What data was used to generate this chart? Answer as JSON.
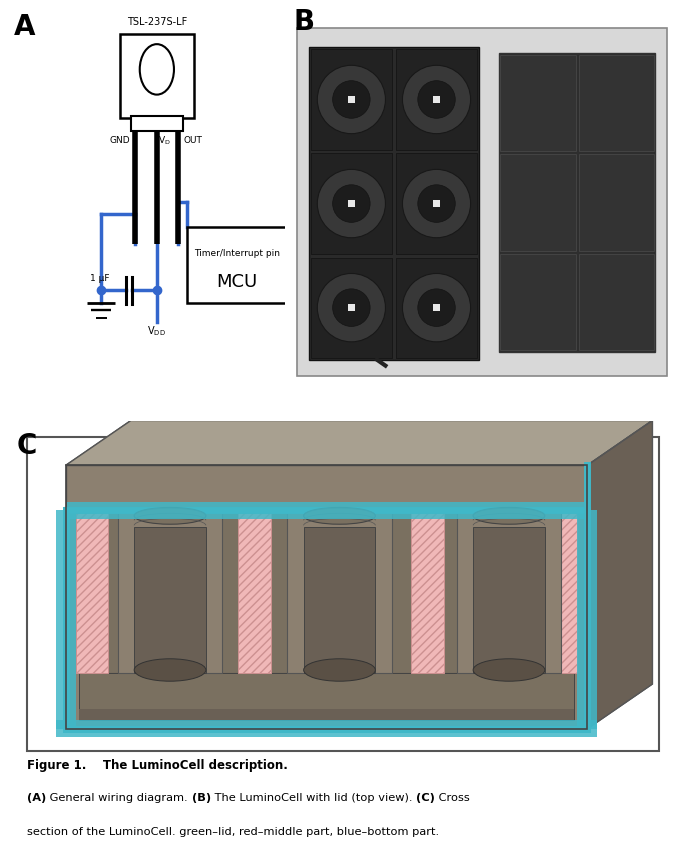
{
  "fig_width": 6.79,
  "fig_height": 8.41,
  "bg_color": "#ffffff",
  "panel_A_label": "A",
  "panel_B_label": "B",
  "panel_C_label": "C",
  "figure_caption_bold": "Figure 1.    The LuminoCell description.",
  "figure_caption_line2_bold_A": "(A)",
  "figure_caption_line2_normal1": " General wiring diagram. ",
  "figure_caption_line2_bold_B": "(B)",
  "figure_caption_line2_normal2": " The LuminoCell with lid (top view). ",
  "figure_caption_line2_bold_C": "(C)",
  "figure_caption_line2_normal3": " Cross",
  "figure_caption_line3": "section of the LuminoCell. green–lid, red–middle part, blue–bottom part.",
  "chip_label": "TSL-237S-LF",
  "gnd_label": "GND",
  "out_label": "OUT",
  "cap_label": "1 μF",
  "mcu_timer_label": "Timer/Interrupt pin",
  "mcu_label": "MCU",
  "black_color": "#000000",
  "blue_color": "#3366cc",
  "body_color": "#8c8070",
  "body_dark": "#6a6055",
  "body_light": "#a8a090",
  "cyan_color": "#40b8c8",
  "pink_color": "#f0b8b8"
}
